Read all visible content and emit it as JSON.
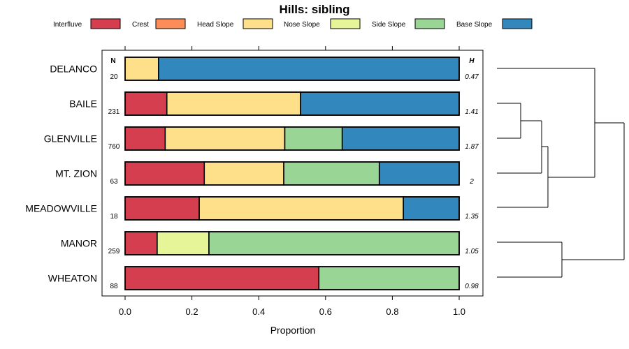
{
  "chart_data": {
    "type": "bar",
    "stacked": true,
    "orientation": "horizontal",
    "title": "Hills: sibling",
    "xlabel": "Proportion",
    "xlim": [
      0,
      1
    ],
    "xticks": [
      0,
      0.2,
      0.4,
      0.6,
      0.8,
      1
    ],
    "xtick_labels": [
      "0.0",
      "0.2",
      "0.4",
      "0.6",
      "0.8",
      "1.0"
    ],
    "n_header": "N",
    "h_header": "H",
    "legend": [
      {
        "name": "Interfluve",
        "color": "#d53e4f"
      },
      {
        "name": "Crest",
        "color": "#fc8d59"
      },
      {
        "name": "Head Slope",
        "color": "#fee08b"
      },
      {
        "name": "Nose Slope",
        "color": "#e6f598"
      },
      {
        "name": "Side Slope",
        "color": "#99d594"
      },
      {
        "name": "Base Slope",
        "color": "#3288bd"
      }
    ],
    "categories": [
      "DELANCO",
      "BAILE",
      "GLENVILLE",
      "MT. ZION",
      "MEADOWVILLE",
      "MANOR",
      "WHEATON"
    ],
    "n": [
      "20",
      "231",
      "760",
      "63",
      "18",
      "259",
      "88"
    ],
    "h": [
      "0.47",
      "1.41",
      "1.87",
      "2",
      "1.35",
      "1.05",
      "0.98"
    ],
    "series": [
      {
        "name": "Interfluve",
        "values": [
          0,
          0.125,
          0.12,
          0.237,
          0.222,
          0.096,
          0.58
        ]
      },
      {
        "name": "Crest",
        "values": [
          0,
          0,
          0,
          0,
          0,
          0,
          0
        ]
      },
      {
        "name": "Head Slope",
        "values": [
          0.1,
          0.4,
          0.358,
          0.238,
          0.611,
          0,
          0
        ]
      },
      {
        "name": "Nose Slope",
        "values": [
          0,
          0,
          0,
          0,
          0,
          0.155,
          0
        ]
      },
      {
        "name": "Side Slope",
        "values": [
          0,
          0,
          0.172,
          0.286,
          0,
          0.749,
          0.42
        ]
      },
      {
        "name": "Base Slope",
        "values": [
          0.9,
          0.475,
          0.35,
          0.239,
          0.167,
          0,
          0
        ]
      }
    ],
    "dendrogram": {
      "merges": [
        [
          "BAILE",
          "GLENVILLE"
        ],
        [
          "BAILE+GLENVILLE",
          "MT. ZION"
        ],
        [
          "BAILE+GLENVILLE+MT. ZION",
          "MEADOWVILLE"
        ],
        [
          "DELANCO",
          "BAILE+GLENVILLE+MT. ZION+MEADOWVILLE"
        ],
        [
          "MANOR",
          "WHEATON"
        ],
        [
          "DELANCO+BAILE+GLENVILLE+MT. ZION+MEADOWVILLE",
          "MANOR+WHEATON"
        ]
      ]
    }
  }
}
